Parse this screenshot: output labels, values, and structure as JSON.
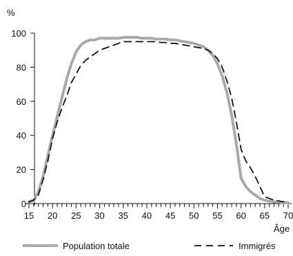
{
  "chart_data": {
    "type": "line",
    "ylabel": "%",
    "xlabel": "Âge",
    "xlim": [
      15,
      70
    ],
    "ylim": [
      0,
      100
    ],
    "x_ticks": [
      "15",
      "20",
      "25",
      "30",
      "35",
      "40",
      "45",
      "50",
      "55",
      "60",
      "65",
      "70"
    ],
    "y_ticks": [
      "0",
      "20",
      "40",
      "60",
      "80",
      "100"
    ],
    "grid": false,
    "legend_position": "bottom",
    "series": [
      {
        "name": "Population totale",
        "style": "solid",
        "color": "#a9a9a9",
        "points": [
          [
            15,
            1
          ],
          [
            16,
            2
          ],
          [
            17,
            7
          ],
          [
            18,
            16
          ],
          [
            19,
            28
          ],
          [
            20,
            40
          ],
          [
            21,
            51
          ],
          [
            22,
            62
          ],
          [
            23,
            73
          ],
          [
            24,
            82
          ],
          [
            25,
            89
          ],
          [
            26,
            93
          ],
          [
            27,
            95
          ],
          [
            28,
            96
          ],
          [
            29,
            96
          ],
          [
            30,
            97
          ],
          [
            31,
            97
          ],
          [
            32,
            97
          ],
          [
            33,
            97
          ],
          [
            34,
            97
          ],
          [
            35,
            97.5
          ],
          [
            36,
            97.5
          ],
          [
            37,
            97.5
          ],
          [
            38,
            97.5
          ],
          [
            39,
            97
          ],
          [
            40,
            97
          ],
          [
            41,
            97
          ],
          [
            42,
            96.5
          ],
          [
            43,
            96.5
          ],
          [
            44,
            96.5
          ],
          [
            45,
            96
          ],
          [
            46,
            96
          ],
          [
            47,
            95.5
          ],
          [
            48,
            95
          ],
          [
            49,
            94.5
          ],
          [
            50,
            94
          ],
          [
            51,
            93
          ],
          [
            52,
            92
          ],
          [
            53,
            90
          ],
          [
            54,
            87
          ],
          [
            55,
            82
          ],
          [
            56,
            75
          ],
          [
            57,
            65
          ],
          [
            58,
            52
          ],
          [
            59,
            35
          ],
          [
            60,
            15
          ],
          [
            61,
            10
          ],
          [
            62,
            7
          ],
          [
            63,
            5
          ],
          [
            64,
            3
          ],
          [
            65,
            2
          ],
          [
            66,
            1.5
          ],
          [
            67,
            1
          ],
          [
            68,
            1
          ],
          [
            69,
            0.5
          ],
          [
            70,
            0.5
          ]
        ]
      },
      {
        "name": "Immigrés",
        "style": "dashed",
        "color": "#111111",
        "points": [
          [
            15,
            1
          ],
          [
            16,
            2
          ],
          [
            17,
            5
          ],
          [
            18,
            14
          ],
          [
            19,
            25
          ],
          [
            20,
            38
          ],
          [
            21,
            48
          ],
          [
            22,
            56
          ],
          [
            23,
            63
          ],
          [
            24,
            71
          ],
          [
            25,
            76
          ],
          [
            26,
            81
          ],
          [
            27,
            84
          ],
          [
            28,
            86
          ],
          [
            29,
            88
          ],
          [
            30,
            90
          ],
          [
            31,
            91
          ],
          [
            32,
            92
          ],
          [
            33,
            93
          ],
          [
            34,
            94
          ],
          [
            35,
            95
          ],
          [
            36,
            95
          ],
          [
            37,
            95
          ],
          [
            38,
            95
          ],
          [
            39,
            95
          ],
          [
            40,
            95
          ],
          [
            41,
            95
          ],
          [
            42,
            95
          ],
          [
            43,
            94.5
          ],
          [
            44,
            94.5
          ],
          [
            45,
            94
          ],
          [
            46,
            94
          ],
          [
            47,
            93.5
          ],
          [
            48,
            93
          ],
          [
            49,
            92.5
          ],
          [
            50,
            92
          ],
          [
            51,
            91.5
          ],
          [
            52,
            91
          ],
          [
            53,
            90
          ],
          [
            54,
            88
          ],
          [
            55,
            85
          ],
          [
            56,
            80
          ],
          [
            57,
            72
          ],
          [
            58,
            62
          ],
          [
            59,
            48
          ],
          [
            60,
            32
          ],
          [
            61,
            25
          ],
          [
            62,
            21
          ],
          [
            63,
            16
          ],
          [
            64,
            10
          ],
          [
            65,
            4
          ],
          [
            66,
            3
          ],
          [
            67,
            2
          ],
          [
            68,
            1.5
          ],
          [
            69,
            1
          ],
          [
            70,
            1
          ]
        ]
      }
    ]
  }
}
